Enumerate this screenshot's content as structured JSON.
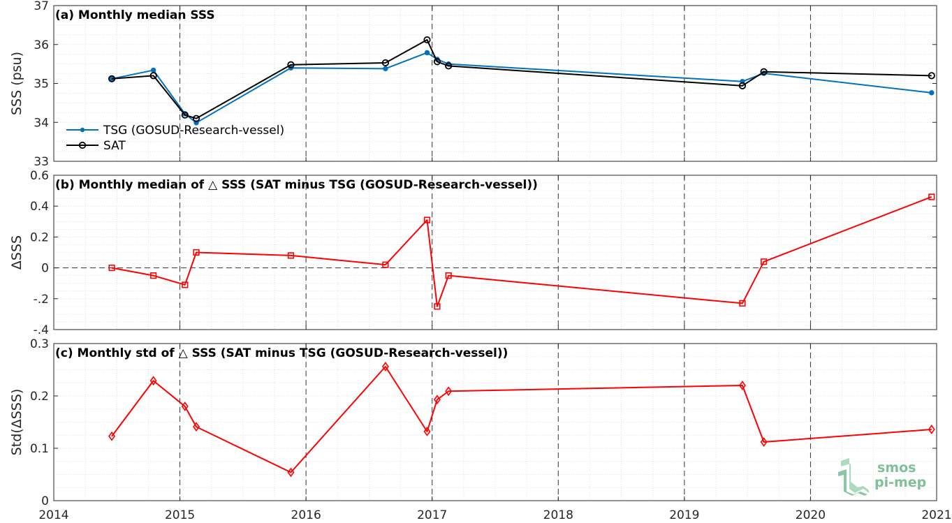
{
  "chart_data": [
    {
      "type": "line",
      "title": "(a) Monthly median SSS",
      "ylabel": "SSS (psu)",
      "xlim": [
        2014,
        2021
      ],
      "ylim": [
        33,
        37
      ],
      "yticks": [
        33,
        34,
        35,
        36,
        37
      ],
      "grid": "on",
      "legend": "bottom-left",
      "x": [
        2014.46,
        2014.79,
        2015.04,
        2015.13,
        2015.88,
        2016.63,
        2016.96,
        2017.04,
        2017.13,
        2019.46,
        2019.63,
        2020.96
      ],
      "series": [
        {
          "name": "TSG (GOSUD-Research-vessel)",
          "color": "#0072BD",
          "marker": "dot",
          "values": [
            35.12,
            35.34,
            34.22,
            33.99,
            35.4,
            35.38,
            35.79,
            35.62,
            35.5,
            35.05,
            35.26,
            34.76
          ]
        },
        {
          "name": "SAT",
          "color": "#000000",
          "marker": "circle",
          "values": [
            35.12,
            35.2,
            34.19,
            34.1,
            35.48,
            35.53,
            36.12,
            35.56,
            35.45,
            34.94,
            35.3,
            35.2
          ]
        }
      ]
    },
    {
      "type": "line",
      "title": "(b) Monthly median of △ SSS (SAT minus TSG (GOSUD-Research-vessel))",
      "ylabel": "ΔSSS",
      "xlim": [
        2014,
        2021
      ],
      "ylim": [
        -0.4,
        0.6
      ],
      "yticks": [
        -0.4,
        -0.2,
        0,
        0.2,
        0.4,
        0.6
      ],
      "grid": "on",
      "x": [
        2014.46,
        2014.79,
        2015.04,
        2015.13,
        2015.88,
        2016.63,
        2016.96,
        2017.04,
        2017.13,
        2019.46,
        2019.63,
        2020.96
      ],
      "series": [
        {
          "color": "#FF0000",
          "marker": "square",
          "values": [
            0.0,
            -0.05,
            -0.11,
            0.1,
            0.08,
            0.02,
            0.31,
            -0.25,
            -0.05,
            -0.23,
            0.04,
            0.46
          ]
        }
      ]
    },
    {
      "type": "line",
      "title": "(c) Monthly std of △ SSS (SAT minus TSG (GOSUD-Research-vessel))",
      "ylabel": "Std(ΔSSS)",
      "xlim": [
        2014,
        2021
      ],
      "ylim": [
        0,
        0.3
      ],
      "yticks": [
        0,
        0.1,
        0.2,
        0.3
      ],
      "grid": "on",
      "x": [
        2014.46,
        2014.79,
        2015.04,
        2015.13,
        2015.88,
        2016.63,
        2016.96,
        2017.04,
        2017.13,
        2019.46,
        2019.63,
        2020.96
      ],
      "series": [
        {
          "color": "#FF0000",
          "marker": "diamond",
          "values": [
            0.123,
            0.229,
            0.18,
            0.141,
            0.054,
            0.256,
            0.132,
            0.193,
            0.209,
            0.22,
            0.112,
            0.136
          ]
        }
      ]
    }
  ],
  "xticks": [
    2014,
    2015,
    2016,
    2017,
    2018,
    2019,
    2020,
    2021
  ],
  "logo": {
    "line1": "smos",
    "line2": "pi-mep",
    "color": "#7fbf9a"
  }
}
